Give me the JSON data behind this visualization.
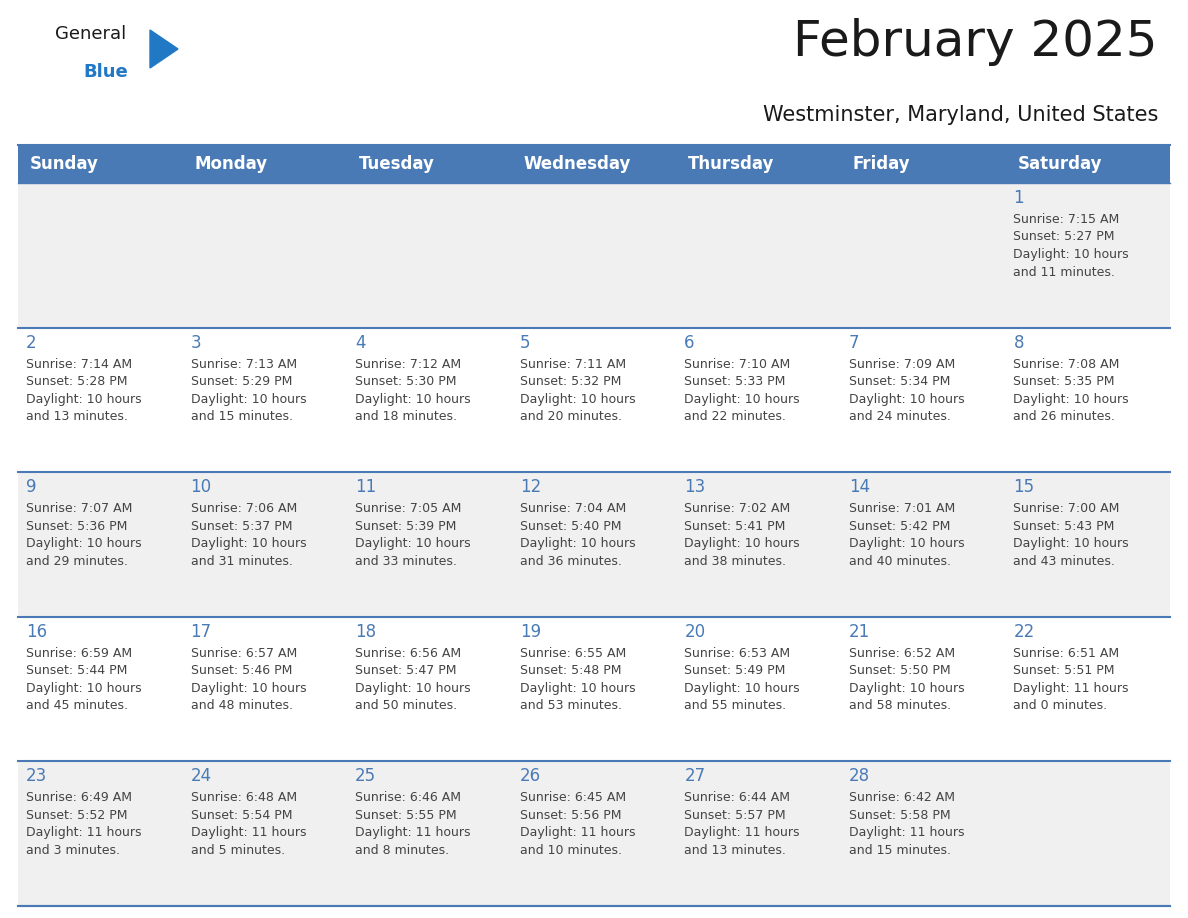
{
  "title": "February 2025",
  "subtitle": "Westminster, Maryland, United States",
  "header_bg_color": "#4a7ab5",
  "header_text_color": "#ffffff",
  "row_bg_light": "#f0f0f0",
  "row_bg_white": "#ffffff",
  "separator_color": "#4a7ab5",
  "day_num_color": "#4a7ab5",
  "cell_text_color": "#444444",
  "days_of_week": [
    "Sunday",
    "Monday",
    "Tuesday",
    "Wednesday",
    "Thursday",
    "Friday",
    "Saturday"
  ],
  "calendar_data": [
    [
      "",
      "",
      "",
      "",
      "",
      "",
      "1\nSunrise: 7:15 AM\nSunset: 5:27 PM\nDaylight: 10 hours\nand 11 minutes."
    ],
    [
      "2\nSunrise: 7:14 AM\nSunset: 5:28 PM\nDaylight: 10 hours\nand 13 minutes.",
      "3\nSunrise: 7:13 AM\nSunset: 5:29 PM\nDaylight: 10 hours\nand 15 minutes.",
      "4\nSunrise: 7:12 AM\nSunset: 5:30 PM\nDaylight: 10 hours\nand 18 minutes.",
      "5\nSunrise: 7:11 AM\nSunset: 5:32 PM\nDaylight: 10 hours\nand 20 minutes.",
      "6\nSunrise: 7:10 AM\nSunset: 5:33 PM\nDaylight: 10 hours\nand 22 minutes.",
      "7\nSunrise: 7:09 AM\nSunset: 5:34 PM\nDaylight: 10 hours\nand 24 minutes.",
      "8\nSunrise: 7:08 AM\nSunset: 5:35 PM\nDaylight: 10 hours\nand 26 minutes."
    ],
    [
      "9\nSunrise: 7:07 AM\nSunset: 5:36 PM\nDaylight: 10 hours\nand 29 minutes.",
      "10\nSunrise: 7:06 AM\nSunset: 5:37 PM\nDaylight: 10 hours\nand 31 minutes.",
      "11\nSunrise: 7:05 AM\nSunset: 5:39 PM\nDaylight: 10 hours\nand 33 minutes.",
      "12\nSunrise: 7:04 AM\nSunset: 5:40 PM\nDaylight: 10 hours\nand 36 minutes.",
      "13\nSunrise: 7:02 AM\nSunset: 5:41 PM\nDaylight: 10 hours\nand 38 minutes.",
      "14\nSunrise: 7:01 AM\nSunset: 5:42 PM\nDaylight: 10 hours\nand 40 minutes.",
      "15\nSunrise: 7:00 AM\nSunset: 5:43 PM\nDaylight: 10 hours\nand 43 minutes."
    ],
    [
      "16\nSunrise: 6:59 AM\nSunset: 5:44 PM\nDaylight: 10 hours\nand 45 minutes.",
      "17\nSunrise: 6:57 AM\nSunset: 5:46 PM\nDaylight: 10 hours\nand 48 minutes.",
      "18\nSunrise: 6:56 AM\nSunset: 5:47 PM\nDaylight: 10 hours\nand 50 minutes.",
      "19\nSunrise: 6:55 AM\nSunset: 5:48 PM\nDaylight: 10 hours\nand 53 minutes.",
      "20\nSunrise: 6:53 AM\nSunset: 5:49 PM\nDaylight: 10 hours\nand 55 minutes.",
      "21\nSunrise: 6:52 AM\nSunset: 5:50 PM\nDaylight: 10 hours\nand 58 minutes.",
      "22\nSunrise: 6:51 AM\nSunset: 5:51 PM\nDaylight: 11 hours\nand 0 minutes."
    ],
    [
      "23\nSunrise: 6:49 AM\nSunset: 5:52 PM\nDaylight: 11 hours\nand 3 minutes.",
      "24\nSunrise: 6:48 AM\nSunset: 5:54 PM\nDaylight: 11 hours\nand 5 minutes.",
      "25\nSunrise: 6:46 AM\nSunset: 5:55 PM\nDaylight: 11 hours\nand 8 minutes.",
      "26\nSunrise: 6:45 AM\nSunset: 5:56 PM\nDaylight: 11 hours\nand 10 minutes.",
      "27\nSunrise: 6:44 AM\nSunset: 5:57 PM\nDaylight: 11 hours\nand 13 minutes.",
      "28\nSunrise: 6:42 AM\nSunset: 5:58 PM\nDaylight: 11 hours\nand 15 minutes.",
      ""
    ]
  ],
  "logo_general_color": "#1a1a1a",
  "logo_blue_color": "#2178c4",
  "logo_triangle_color": "#2178c4",
  "title_fontsize": 36,
  "subtitle_fontsize": 15,
  "header_fontsize": 12,
  "daynum_fontsize": 12,
  "cell_fontsize": 9
}
